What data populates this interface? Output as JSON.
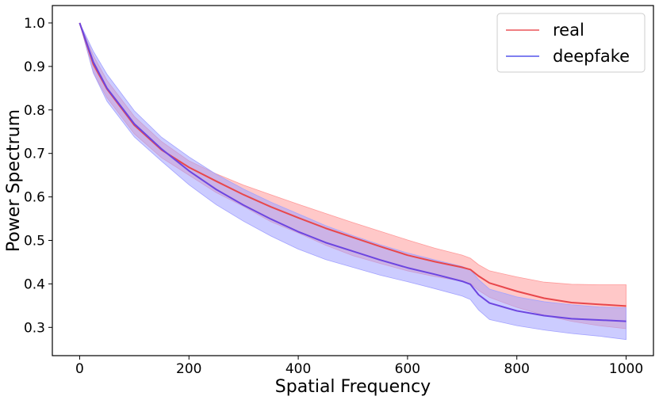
{
  "chart_data": {
    "type": "line",
    "title": "",
    "xlabel": "Spatial Frequency",
    "ylabel": "Power Spectrum",
    "xlim": [
      -50,
      1050
    ],
    "ylim": [
      0.235,
      1.04
    ],
    "xticks": [
      0,
      200,
      400,
      600,
      800,
      1000
    ],
    "yticks": [
      0.3,
      0.4,
      0.5,
      0.6,
      0.7,
      0.8,
      0.9,
      1.0
    ],
    "xtick_labels": [
      "0",
      "200",
      "400",
      "600",
      "800",
      "1000"
    ],
    "ytick_labels": [
      "0.3",
      "0.4",
      "0.5",
      "0.6",
      "0.7",
      "0.8",
      "0.9",
      "1.0"
    ],
    "legend_position": "top-right",
    "x": [
      0,
      25,
      50,
      100,
      150,
      200,
      250,
      300,
      350,
      400,
      450,
      500,
      550,
      600,
      650,
      700,
      715,
      730,
      750,
      800,
      850,
      900,
      950,
      1000
    ],
    "series": [
      {
        "name": "real",
        "color": "#e8474b",
        "band_color": "#ff9a9a",
        "values": [
          1.0,
          0.905,
          0.848,
          0.765,
          0.708,
          0.668,
          0.636,
          0.605,
          0.577,
          0.552,
          0.528,
          0.507,
          0.486,
          0.466,
          0.451,
          0.438,
          0.433,
          0.418,
          0.402,
          0.383,
          0.367,
          0.357,
          0.353,
          0.349
        ],
        "upper": [
          1.0,
          0.925,
          0.868,
          0.785,
          0.727,
          0.683,
          0.653,
          0.627,
          0.605,
          0.583,
          0.562,
          0.541,
          0.521,
          0.501,
          0.482,
          0.466,
          0.459,
          0.444,
          0.43,
          0.416,
          0.404,
          0.399,
          0.398,
          0.398
        ],
        "lower": [
          1.0,
          0.885,
          0.828,
          0.745,
          0.69,
          0.65,
          0.61,
          0.578,
          0.543,
          0.517,
          0.489,
          0.465,
          0.447,
          0.43,
          0.417,
          0.406,
          0.401,
          0.385,
          0.369,
          0.346,
          0.328,
          0.314,
          0.304,
          0.297
        ]
      },
      {
        "name": "deepfake",
        "color": "#6c45e0",
        "band_color": "#a3a3ff",
        "values": [
          1.0,
          0.91,
          0.85,
          0.768,
          0.71,
          0.66,
          0.617,
          0.581,
          0.549,
          0.52,
          0.495,
          0.475,
          0.455,
          0.437,
          0.422,
          0.406,
          0.399,
          0.375,
          0.356,
          0.338,
          0.327,
          0.32,
          0.317,
          0.314
        ],
        "upper": [
          1.0,
          0.935,
          0.882,
          0.798,
          0.737,
          0.692,
          0.652,
          0.618,
          0.588,
          0.561,
          0.534,
          0.511,
          0.49,
          0.471,
          0.455,
          0.44,
          0.433,
          0.41,
          0.388,
          0.37,
          0.359,
          0.352,
          0.347,
          0.345
        ],
        "lower": [
          1.0,
          0.885,
          0.82,
          0.738,
          0.682,
          0.628,
          0.582,
          0.544,
          0.51,
          0.48,
          0.456,
          0.438,
          0.42,
          0.405,
          0.389,
          0.372,
          0.364,
          0.34,
          0.318,
          0.304,
          0.294,
          0.286,
          0.28,
          0.272
        ]
      }
    ]
  }
}
